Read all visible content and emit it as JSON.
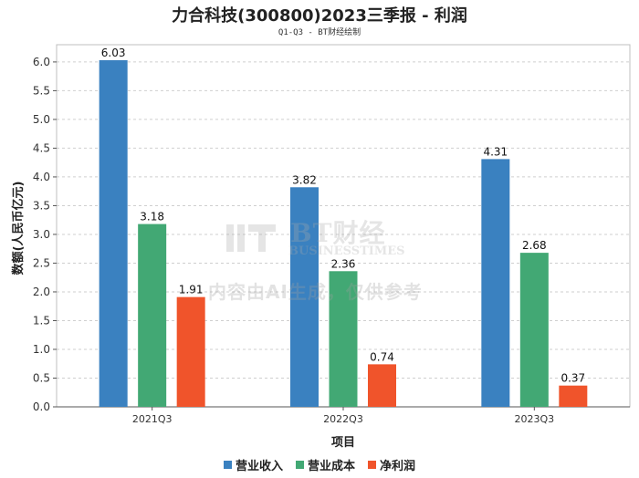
{
  "chart_data": {
    "type": "bar",
    "title": "力合科技(300800)2023三季报 - 利润",
    "subtitle": "Q1-Q3 - BT财经绘制",
    "xlabel": "项目",
    "ylabel": "数额(人民币亿元)",
    "categories": [
      "2021Q3",
      "2022Q3",
      "2023Q3"
    ],
    "series": [
      {
        "name": "营业收入",
        "color": "#3a81c0",
        "values": [
          6.03,
          3.82,
          4.31
        ]
      },
      {
        "name": "营业成本",
        "color": "#42a874",
        "values": [
          3.18,
          2.36,
          2.68
        ]
      },
      {
        "name": "净利润",
        "color": "#f0542b",
        "values": [
          1.91,
          0.74,
          0.37
        ]
      }
    ],
    "ylim": [
      0,
      6.3
    ],
    "yticks": [
      0.0,
      0.5,
      1.0,
      1.5,
      2.0,
      2.5,
      3.0,
      3.5,
      4.0,
      4.5,
      5.0,
      5.5,
      6.0
    ],
    "grid": true,
    "legend_position": "bottom"
  },
  "watermark": {
    "brand": "BT财经",
    "brand_en": "BUSINESSTIMES",
    "notice": "内容由AI生成，仅供参考"
  }
}
